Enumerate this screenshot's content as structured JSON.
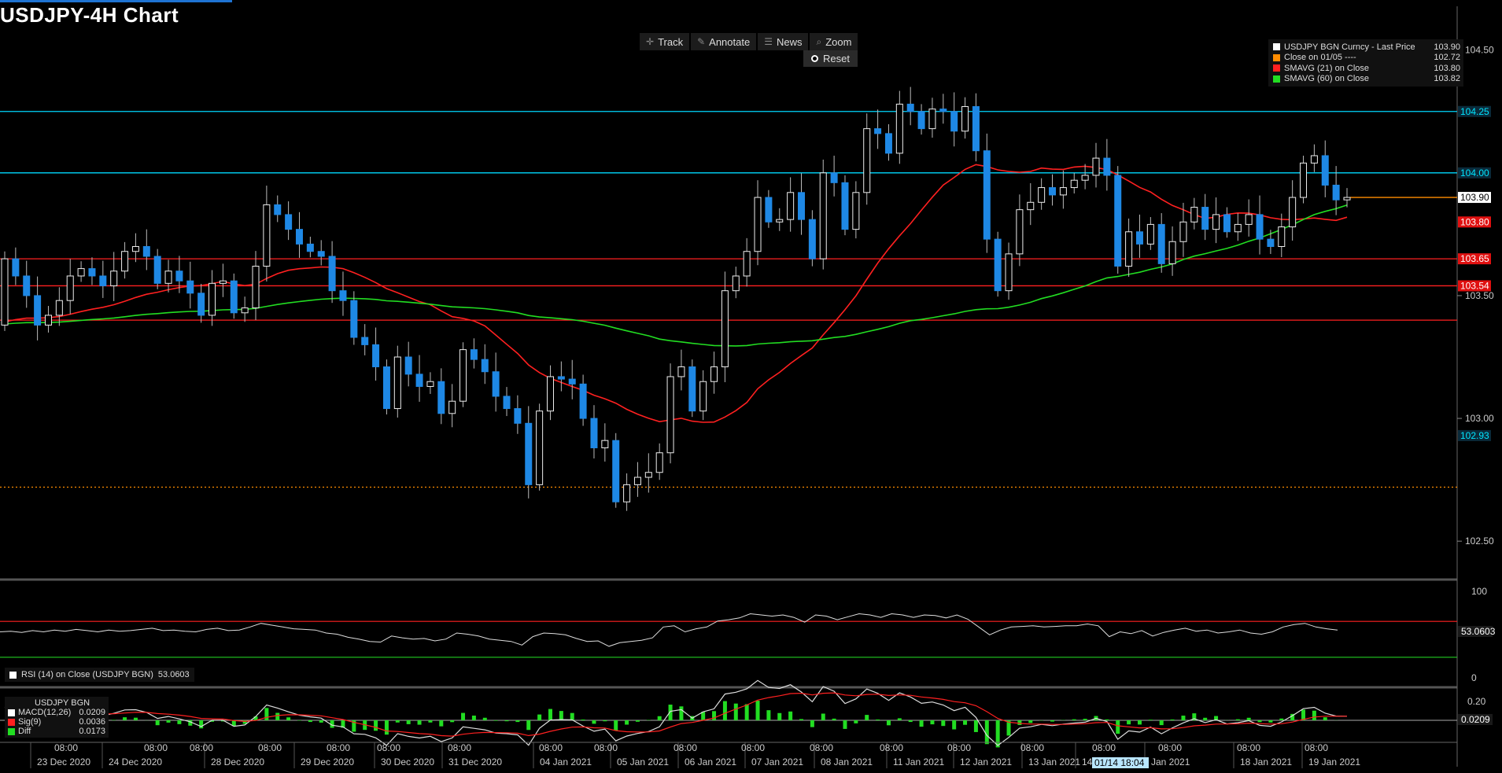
{
  "title": "USDJPY-4H Chart",
  "toolbar": {
    "track": "Track",
    "annotate": "Annotate",
    "news": "News",
    "zoom": "Zoom",
    "reset": "Reset"
  },
  "legend": [
    {
      "name": "USDJPY BGN Curncy - Last Price",
      "value": "103.90",
      "color": "#ffffff"
    },
    {
      "name": "Close on 01/05 ----",
      "value": "102.72",
      "color": "#ff8c00"
    },
    {
      "name": "SMAVG (21)  on Close",
      "value": "103.80",
      "color": "#ff2020"
    },
    {
      "name": "SMAVG (60)  on Close",
      "value": "103.82",
      "color": "#22dd22"
    }
  ],
  "rsi_label": {
    "name": "RSI (14)  on Close (USDJPY BGN)",
    "value": "53.0603"
  },
  "macd_legend": {
    "title": "USDJPY BGN",
    "rows": [
      {
        "name": "MACD(12,26)",
        "value": "0.0209",
        "color": "#ffffff"
      },
      {
        "name": "Sig(9)",
        "value": "0.0036",
        "color": "#ff2020"
      },
      {
        "name": "Diff",
        "value": "0.0173",
        "color": "#22dd22"
      }
    ]
  },
  "crosshair_label": "01/14 18:04",
  "chart_data": [
    {
      "type": "candlestick",
      "title": "USDJPY-4H Chart",
      "ylim": [
        102.35,
        104.64
      ],
      "y_ticks": [
        102.5,
        103.0,
        103.5,
        104.5
      ],
      "x_tick_time": "08:00",
      "x_dates": [
        "23 Dec 2020",
        "24 Dec 2020",
        "28 Dec 2020",
        "29 Dec 2020",
        "30 Dec 2020",
        "31 Dec 2020",
        "04 Jan 2021",
        "05 Jan 2021",
        "06 Jan 2021",
        "07 Jan 2021",
        "08 Jan 2021",
        "11 Jan 2021",
        "12 Jan 2021",
        "13 Jan 2021",
        "14",
        "Jan 2021",
        "18 Jan 2021",
        "19 Jan 2021"
      ],
      "horizontal_lines": [
        {
          "value": 104.25,
          "color": "#00d8ff",
          "label": "104.25"
        },
        {
          "value": 104.0,
          "color": "#00d8ff",
          "label": "104.00"
        },
        {
          "value": 103.65,
          "color": "#ff2020",
          "label": "103.65"
        },
        {
          "value": 103.54,
          "color": "#ff2020",
          "label": "103.54"
        },
        {
          "value": 103.4,
          "color": "#ff2020",
          "label": ""
        },
        {
          "value": 102.72,
          "color": "#ff8c00",
          "label": "",
          "style": "dotted"
        },
        {
          "value": 103.9,
          "color": "#ff8c00",
          "label": ""
        }
      ],
      "price_labels": [
        {
          "value": 104.25,
          "text": "104.25",
          "bg": "#0a2a3a",
          "fg": "#00e5ff"
        },
        {
          "value": 104.0,
          "text": "104.00",
          "bg": "#0a2a3a",
          "fg": "#00e5ff"
        },
        {
          "value": 103.9,
          "text": "103.90",
          "bg": "#ffffff",
          "fg": "#000000"
        },
        {
          "value": 103.8,
          "text": "103.80",
          "bg": "#e01010",
          "fg": "#ffffff"
        },
        {
          "value": 103.65,
          "text": "103.65",
          "bg": "#e01010",
          "fg": "#ffffff"
        },
        {
          "value": 103.54,
          "text": "103.54",
          "bg": "#e01010",
          "fg": "#ffffff"
        },
        {
          "value": 102.93,
          "text": "102.93",
          "bg": "#0a2a3a",
          "fg": "#00e5ff"
        }
      ],
      "candles": [
        [
          103.38,
          103.65
        ],
        [
          103.65,
          103.58
        ],
        [
          103.58,
          103.5
        ],
        [
          103.5,
          103.38
        ],
        [
          103.38,
          103.42
        ],
        [
          103.42,
          103.48
        ],
        [
          103.48,
          103.58
        ],
        [
          103.58,
          103.61
        ],
        [
          103.61,
          103.58
        ],
        [
          103.58,
          103.54
        ],
        [
          103.54,
          103.6
        ],
        [
          103.6,
          103.68
        ],
        [
          103.68,
          103.7
        ],
        [
          103.7,
          103.66
        ],
        [
          103.66,
          103.55
        ],
        [
          103.55,
          103.6
        ],
        [
          103.6,
          103.56
        ],
        [
          103.56,
          103.51
        ],
        [
          103.51,
          103.42
        ],
        [
          103.42,
          103.55
        ],
        [
          103.55,
          103.56
        ],
        [
          103.56,
          103.43
        ],
        [
          103.43,
          103.45
        ],
        [
          103.45,
          103.62
        ],
        [
          103.62,
          103.87
        ],
        [
          103.87,
          103.83
        ],
        [
          103.83,
          103.77
        ],
        [
          103.77,
          103.71
        ],
        [
          103.71,
          103.68
        ],
        [
          103.68,
          103.66
        ],
        [
          103.66,
          103.52
        ],
        [
          103.52,
          103.48
        ],
        [
          103.48,
          103.33
        ],
        [
          103.33,
          103.3
        ],
        [
          103.3,
          103.21
        ],
        [
          103.21,
          103.04
        ],
        [
          103.04,
          103.25
        ],
        [
          103.25,
          103.18
        ],
        [
          103.18,
          103.13
        ],
        [
          103.13,
          103.15
        ],
        [
          103.15,
          103.02
        ],
        [
          103.02,
          103.07
        ],
        [
          103.07,
          103.28
        ],
        [
          103.28,
          103.24
        ],
        [
          103.24,
          103.19
        ],
        [
          103.19,
          103.09
        ],
        [
          103.09,
          103.04
        ],
        [
          103.04,
          102.98
        ],
        [
          102.98,
          102.73
        ],
        [
          102.73,
          103.03
        ],
        [
          103.03,
          103.17
        ],
        [
          103.17,
          103.16
        ],
        [
          103.16,
          103.14
        ],
        [
          103.14,
          103.0
        ],
        [
          103.0,
          102.88
        ],
        [
          102.88,
          102.91
        ],
        [
          102.91,
          102.66
        ],
        [
          102.66,
          102.73
        ],
        [
          102.73,
          102.76
        ],
        [
          102.76,
          102.78
        ],
        [
          102.78,
          102.86
        ],
        [
          102.86,
          103.17
        ],
        [
          103.17,
          103.21
        ],
        [
          103.21,
          103.03
        ],
        [
          103.03,
          103.15
        ],
        [
          103.15,
          103.21
        ],
        [
          103.21,
          103.52
        ],
        [
          103.52,
          103.58
        ],
        [
          103.58,
          103.68
        ],
        [
          103.68,
          103.9
        ],
        [
          103.9,
          103.8
        ],
        [
          103.8,
          103.81
        ],
        [
          103.81,
          103.92
        ],
        [
          103.92,
          103.81
        ],
        [
          103.81,
          103.65
        ],
        [
          103.65,
          104.0
        ],
        [
          104.0,
          103.96
        ],
        [
          103.96,
          103.77
        ],
        [
          103.77,
          103.92
        ],
        [
          103.92,
          104.18
        ],
        [
          104.18,
          104.16
        ],
        [
          104.16,
          104.08
        ],
        [
          104.08,
          104.28
        ],
        [
          104.28,
          104.25
        ],
        [
          104.25,
          104.18
        ],
        [
          104.18,
          104.26
        ],
        [
          104.26,
          104.25
        ],
        [
          104.25,
          104.17
        ],
        [
          104.17,
          104.27
        ],
        [
          104.27,
          104.09
        ],
        [
          104.09,
          103.73
        ],
        [
          103.73,
          103.52
        ],
        [
          103.52,
          103.67
        ],
        [
          103.67,
          103.85
        ],
        [
          103.85,
          103.88
        ],
        [
          103.88,
          103.94
        ],
        [
          103.94,
          103.91
        ],
        [
          103.91,
          103.94
        ],
        [
          103.94,
          103.97
        ],
        [
          103.97,
          103.99
        ],
        [
          103.99,
          104.06
        ],
        [
          104.06,
          103.99
        ],
        [
          103.99,
          103.62
        ],
        [
          103.62,
          103.76
        ],
        [
          103.76,
          103.71
        ],
        [
          103.71,
          103.79
        ],
        [
          103.79,
          103.63
        ],
        [
          103.63,
          103.72
        ],
        [
          103.72,
          103.8
        ],
        [
          103.8,
          103.86
        ],
        [
          103.86,
          103.77
        ],
        [
          103.77,
          103.83
        ],
        [
          103.83,
          103.76
        ],
        [
          103.76,
          103.79
        ],
        [
          103.79,
          103.83
        ],
        [
          103.83,
          103.73
        ],
        [
          103.73,
          103.7
        ],
        [
          103.7,
          103.78
        ],
        [
          103.78,
          103.9
        ],
        [
          103.9,
          104.04
        ],
        [
          104.04,
          104.07
        ],
        [
          104.07,
          103.95
        ],
        [
          103.95,
          103.89
        ],
        [
          103.89,
          103.9
        ]
      ],
      "series": [
        {
          "name": "SMAVG (21)  on Close",
          "color": "#ff2020"
        },
        {
          "name": "SMAVG (60)  on Close",
          "color": "#22dd22"
        }
      ]
    },
    {
      "type": "line",
      "name": "RSI (14)  on Close (USDJPY BGN)",
      "ylim": [
        0,
        100
      ],
      "y_ticks": [
        0,
        100
      ],
      "levels": [
        70,
        30
      ],
      "values": [
        52,
        53,
        51,
        54,
        52,
        55,
        53,
        56,
        54,
        52,
        55,
        53,
        54,
        56,
        58,
        54,
        55,
        53,
        52,
        56,
        58,
        54,
        55,
        60,
        66,
        63,
        60,
        57,
        56,
        55,
        50,
        48,
        43,
        40,
        36,
        35,
        45,
        42,
        40,
        41,
        37,
        40,
        50,
        48,
        45,
        40,
        38,
        36,
        30,
        44,
        50,
        49,
        47,
        41,
        36,
        37,
        28,
        34,
        36,
        38,
        42,
        60,
        62,
        52,
        57,
        60,
        70,
        72,
        75,
        82,
        80,
        78,
        80,
        76,
        68,
        80,
        78,
        72,
        77,
        82,
        80,
        76,
        82,
        80,
        76,
        80,
        79,
        75,
        80,
        73,
        60,
        47,
        55,
        60,
        61,
        62,
        60,
        61,
        62,
        62,
        65,
        62,
        44,
        52,
        49,
        54,
        45,
        51,
        55,
        58,
        53,
        55,
        50,
        52,
        55,
        50,
        48,
        52,
        60,
        64,
        66,
        60,
        57,
        55
      ],
      "label_value": "53.0603"
    },
    {
      "type": "macd",
      "name": "USDJPY BGN",
      "y_ticks": [
        0.2
      ],
      "macd": "0.0209",
      "signal": "0.0036",
      "diff": "0.0173"
    }
  ]
}
